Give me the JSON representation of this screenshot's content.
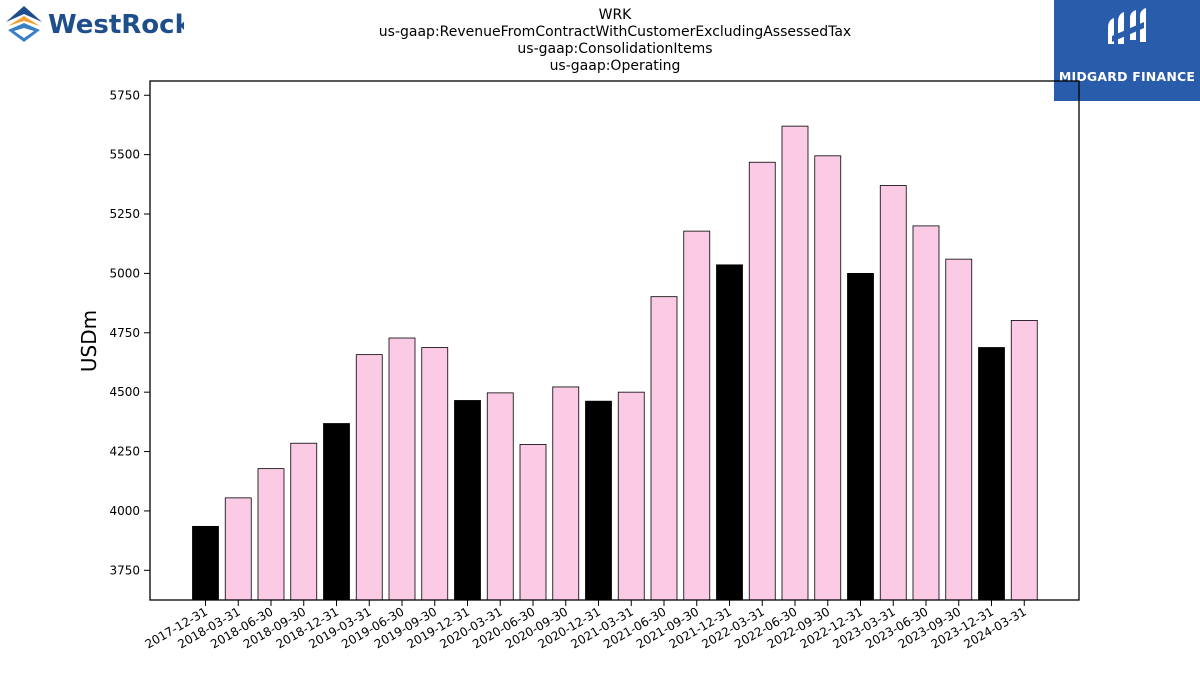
{
  "header": {
    "title_lines": [
      "WRK",
      "us-gaap:RevenueFromContractWithCustomerExcludingAssessedTax",
      "us-gaap:ConsolidationItems",
      "us-gaap:Operating"
    ]
  },
  "logos": {
    "left_text": "WestRock",
    "right_text": "MIDGARD FINANCE"
  },
  "chart_data": {
    "type": "bar",
    "title": "WRK\nus-gaap:RevenueFromContractWithCustomerExcludingAssessedTax\nus-gaap:ConsolidationItems\nus-gaap:Operating",
    "xlabel": "",
    "ylabel": "USDm",
    "ylim": [
      3625,
      5810
    ],
    "yticks": [
      3750,
      4000,
      4250,
      4500,
      4750,
      5000,
      5250,
      5500,
      5750
    ],
    "grid": false,
    "categories": [
      "2017-12-31",
      "2018-03-31",
      "2018-06-30",
      "2018-09-30",
      "2018-12-31",
      "2019-03-31",
      "2019-06-30",
      "2019-09-30",
      "2019-12-31",
      "2020-03-31",
      "2020-06-30",
      "2020-09-30",
      "2020-12-31",
      "2021-03-31",
      "2021-06-30",
      "2021-09-30",
      "2021-12-31",
      "2022-03-31",
      "2022-06-30",
      "2022-09-30",
      "2022-12-31",
      "2023-03-31",
      "2023-06-30",
      "2023-09-30",
      "2023-12-31",
      "2024-03-31"
    ],
    "values": [
      3935,
      4055,
      4178,
      4285,
      4368,
      4658,
      4728,
      4688,
      4465,
      4497,
      4280,
      4522,
      4462,
      4500,
      4902,
      5178,
      5036,
      5468,
      5620,
      5495,
      5000,
      5370,
      5200,
      5060,
      4688,
      4802
    ],
    "bar_colors": [
      "#000000",
      "#fbcae4",
      "#fbcae4",
      "#fbcae4",
      "#000000",
      "#fbcae4",
      "#fbcae4",
      "#fbcae4",
      "#000000",
      "#fbcae4",
      "#fbcae4",
      "#fbcae4",
      "#000000",
      "#fbcae4",
      "#fbcae4",
      "#fbcae4",
      "#000000",
      "#fbcae4",
      "#fbcae4",
      "#fbcae4",
      "#000000",
      "#fbcae4",
      "#fbcae4",
      "#fbcae4",
      "#000000",
      "#fbcae4"
    ]
  },
  "colors": {
    "highlight_bar": "#000000",
    "regular_bar": "#fbcae4",
    "westrock_blue": "#1f4e8c",
    "midgard_blue": "#2a5cac"
  }
}
